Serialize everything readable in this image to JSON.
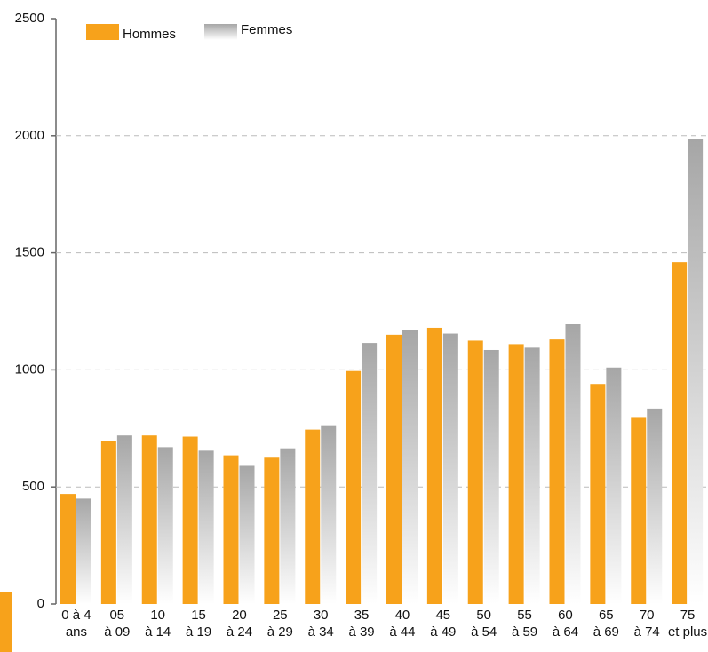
{
  "chart_data": {
    "type": "bar",
    "categories": [
      [
        "0 à 4",
        "ans"
      ],
      [
        "05",
        "à 09"
      ],
      [
        "10",
        "à 14"
      ],
      [
        "15",
        "à 19"
      ],
      [
        "20",
        "à 24"
      ],
      [
        "25",
        "à 29"
      ],
      [
        "30",
        "à 34"
      ],
      [
        "35",
        "à 39"
      ],
      [
        "40",
        "à 44"
      ],
      [
        "45",
        "à 49"
      ],
      [
        "50",
        "à 54"
      ],
      [
        "55",
        "à 59"
      ],
      [
        "60",
        "à 64"
      ],
      [
        "65",
        "à 69"
      ],
      [
        "70",
        "à 74"
      ],
      [
        "75",
        "et plus"
      ]
    ],
    "series": [
      {
        "name": "Hommes",
        "color": "#f7a21b",
        "values": [
          470,
          695,
          720,
          715,
          635,
          625,
          745,
          995,
          1150,
          1180,
          1125,
          1110,
          1130,
          940,
          795,
          1460
        ]
      },
      {
        "name": "Femmes",
        "color": "#a6a6a6",
        "values": [
          450,
          720,
          670,
          655,
          590,
          665,
          760,
          1115,
          1170,
          1155,
          1085,
          1095,
          1195,
          1010,
          835,
          1985
        ]
      }
    ],
    "ylim": [
      0,
      2500
    ],
    "yticks": [
      0,
      500,
      1000,
      1500,
      2000,
      2500
    ],
    "grid": true
  }
}
